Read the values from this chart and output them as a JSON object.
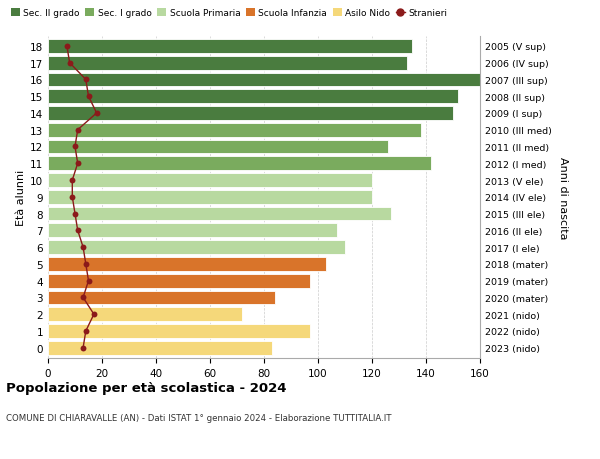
{
  "ages": [
    18,
    17,
    16,
    15,
    14,
    13,
    12,
    11,
    10,
    9,
    8,
    7,
    6,
    5,
    4,
    3,
    2,
    1,
    0
  ],
  "right_labels": [
    "2005 (V sup)",
    "2006 (IV sup)",
    "2007 (III sup)",
    "2008 (II sup)",
    "2009 (I sup)",
    "2010 (III med)",
    "2011 (II med)",
    "2012 (I med)",
    "2013 (V ele)",
    "2014 (IV ele)",
    "2015 (III ele)",
    "2016 (II ele)",
    "2017 (I ele)",
    "2018 (mater)",
    "2019 (mater)",
    "2020 (mater)",
    "2021 (nido)",
    "2022 (nido)",
    "2023 (nido)"
  ],
  "bar_values": [
    135,
    133,
    163,
    152,
    150,
    138,
    126,
    142,
    120,
    120,
    127,
    107,
    110,
    103,
    97,
    84,
    72,
    97,
    83
  ],
  "bar_colors": [
    "#4a7c3f",
    "#4a7c3f",
    "#4a7c3f",
    "#4a7c3f",
    "#4a7c3f",
    "#7aab5e",
    "#7aab5e",
    "#7aab5e",
    "#b8d9a0",
    "#b8d9a0",
    "#b8d9a0",
    "#b8d9a0",
    "#b8d9a0",
    "#d9742a",
    "#d9742a",
    "#d9742a",
    "#f5d87a",
    "#f5d87a",
    "#f5d87a"
  ],
  "stranieri_values": [
    7,
    8,
    14,
    15,
    18,
    11,
    10,
    11,
    9,
    9,
    10,
    11,
    13,
    14,
    15,
    13,
    17,
    14,
    13
  ],
  "stranieri_color": "#8b1a1a",
  "legend_items": [
    {
      "label": "Sec. II grado",
      "color": "#4a7c3f"
    },
    {
      "label": "Sec. I grado",
      "color": "#7aab5e"
    },
    {
      "label": "Scuola Primaria",
      "color": "#b8d9a0"
    },
    {
      "label": "Scuola Infanzia",
      "color": "#d9742a"
    },
    {
      "label": "Asilo Nido",
      "color": "#f5d87a"
    },
    {
      "label": "Stranieri",
      "color": "#8b1a1a"
    }
  ],
  "ylabel_left": "Età alunni",
  "ylabel_right": "Anni di nascita",
  "xlim": [
    0,
    160
  ],
  "xticks": [
    0,
    20,
    40,
    60,
    80,
    100,
    120,
    140,
    160
  ],
  "title": "Popolazione per età scolastica - 2024",
  "subtitle": "COMUNE DI CHIARAVALLE (AN) - Dati ISTAT 1° gennaio 2024 - Elaborazione TUTTITALIA.IT",
  "bg_color": "#ffffff",
  "grid_color": "#cccccc",
  "bar_height": 0.82
}
